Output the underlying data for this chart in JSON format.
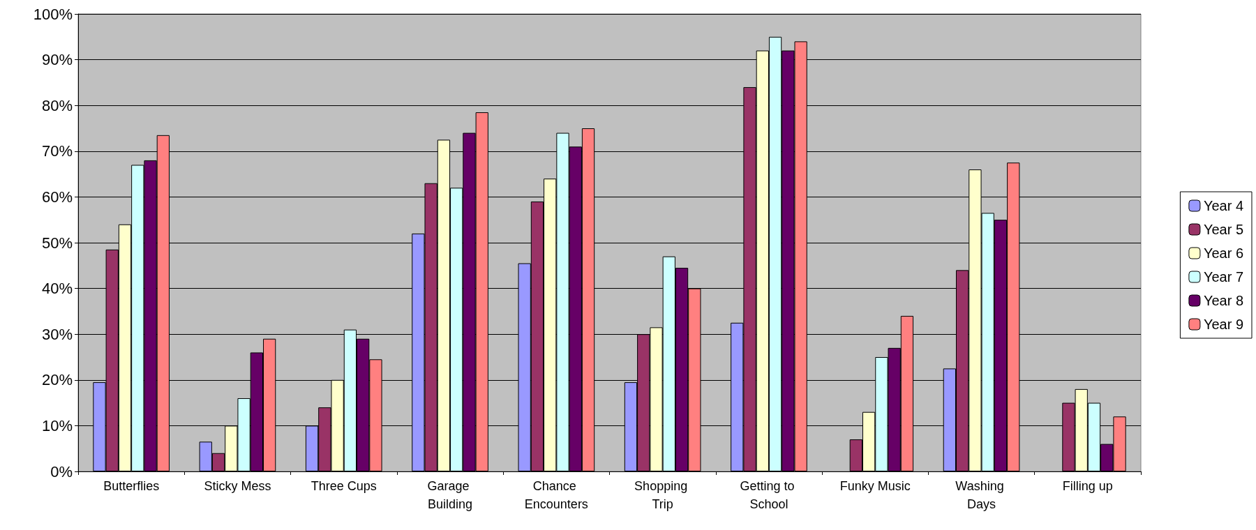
{
  "chart_data": {
    "type": "bar",
    "categories": [
      "Butterflies",
      "Sticky Mess",
      "Three Cups",
      "Garage Building",
      "Chance Encounters",
      "Shopping Trip",
      "Getting to School",
      "Funky Music",
      "Washing Days",
      "Filling up"
    ],
    "series": [
      {
        "name": "Year 4",
        "color": "#9999ff",
        "values": [
          19.5,
          6.5,
          10,
          52,
          45.5,
          19.5,
          32.5,
          null,
          22.5,
          null
        ]
      },
      {
        "name": "Year 5",
        "color": "#993366",
        "values": [
          48.5,
          4,
          14,
          63,
          59,
          30,
          84,
          7,
          44,
          15
        ]
      },
      {
        "name": "Year 6",
        "color": "#ffffcc",
        "values": [
          54,
          10,
          20,
          72.5,
          64,
          31.5,
          92,
          13,
          66,
          18
        ]
      },
      {
        "name": "Year 7",
        "color": "#ccffff",
        "values": [
          67,
          16,
          31,
          62,
          74,
          47,
          95,
          25,
          56.5,
          15
        ]
      },
      {
        "name": "Year 8",
        "color": "#660066",
        "values": [
          68,
          26,
          29,
          74,
          71,
          44.5,
          92,
          27,
          55,
          6
        ]
      },
      {
        "name": "Year 9",
        "color": "#ff8080",
        "values": [
          73.5,
          29,
          24.5,
          78.5,
          75,
          40,
          94,
          34,
          67.5,
          12
        ]
      }
    ],
    "ylim": [
      0,
      100
    ],
    "yticks": [
      {
        "value": 0,
        "label": "0%"
      },
      {
        "value": 10,
        "label": "10%"
      },
      {
        "value": 20,
        "label": "20%"
      },
      {
        "value": 30,
        "label": "30%"
      },
      {
        "value": 40,
        "label": "40%"
      },
      {
        "value": 50,
        "label": "50%"
      },
      {
        "value": 60,
        "label": "60%"
      },
      {
        "value": 70,
        "label": "70%"
      },
      {
        "value": 80,
        "label": "80%"
      },
      {
        "value": 90,
        "label": "90%"
      },
      {
        "value": 100,
        "label": "100%"
      }
    ],
    "grid": "y",
    "legend": "right"
  }
}
